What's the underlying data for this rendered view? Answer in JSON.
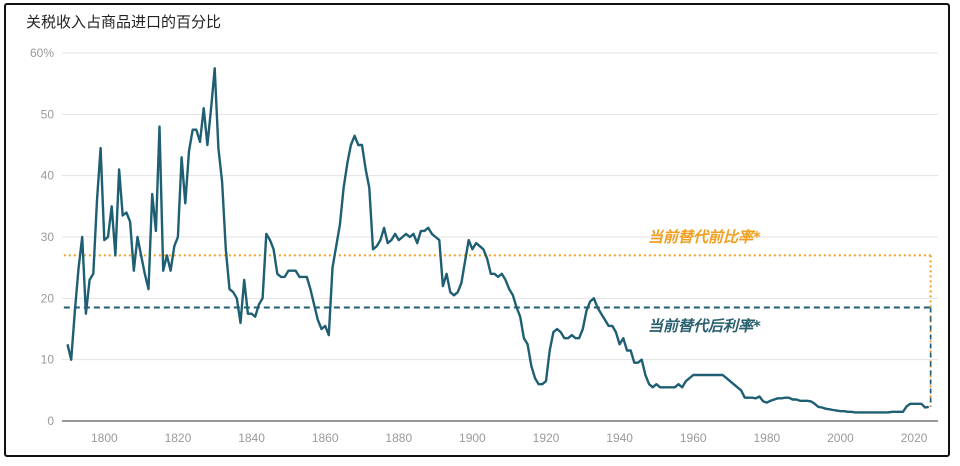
{
  "chart_data": {
    "type": "line",
    "title": "关税收入占商品进口的百分比",
    "xlabel": "",
    "ylabel": "",
    "xlim": [
      1789,
      2025
    ],
    "ylim": [
      0,
      60
    ],
    "grid": true,
    "legend": "none",
    "x_ticks": [
      1800,
      1820,
      1840,
      1860,
      1880,
      1900,
      1920,
      1940,
      1960,
      1980,
      2000,
      2020
    ],
    "y_ticks": [
      0,
      10,
      20,
      30,
      40,
      50,
      60
    ],
    "y_tick_labels": [
      "0",
      "10",
      "20",
      "30",
      "40",
      "50",
      "60%"
    ],
    "colors": {
      "series": "#1f5f73",
      "pre_rate": "#f0a020",
      "post_rate": "#1f5f73",
      "annotation_post": "#2a5f70"
    },
    "series": [
      {
        "points": [
          [
            1790,
            12.5
          ],
          [
            1791,
            10
          ],
          [
            1792,
            18
          ],
          [
            1793,
            25
          ],
          [
            1794,
            30
          ],
          [
            1795,
            17.5
          ],
          [
            1796,
            23
          ],
          [
            1797,
            24
          ],
          [
            1798,
            36
          ],
          [
            1799,
            44.5
          ],
          [
            1800,
            29.5
          ],
          [
            1801,
            30
          ],
          [
            1802,
            35
          ],
          [
            1803,
            27
          ],
          [
            1804,
            41
          ],
          [
            1805,
            33.5
          ],
          [
            1806,
            34
          ],
          [
            1807,
            32.5
          ],
          [
            1808,
            24.5
          ],
          [
            1809,
            30
          ],
          [
            1810,
            27
          ],
          [
            1811,
            24
          ],
          [
            1812,
            21.5
          ],
          [
            1813,
            37
          ],
          [
            1814,
            31
          ],
          [
            1815,
            48
          ],
          [
            1816,
            24.5
          ],
          [
            1817,
            27
          ],
          [
            1818,
            24.5
          ],
          [
            1819,
            28.5
          ],
          [
            1820,
            30
          ],
          [
            1821,
            43
          ],
          [
            1822,
            35.5
          ],
          [
            1823,
            44
          ],
          [
            1824,
            47.5
          ],
          [
            1825,
            47.5
          ],
          [
            1826,
            45.5
          ],
          [
            1827,
            51
          ],
          [
            1828,
            45
          ],
          [
            1829,
            51
          ],
          [
            1830,
            57.5
          ],
          [
            1831,
            44.5
          ],
          [
            1832,
            39
          ],
          [
            1833,
            28
          ],
          [
            1834,
            21.5
          ],
          [
            1835,
            21
          ],
          [
            1836,
            20
          ],
          [
            1837,
            16
          ],
          [
            1838,
            23
          ],
          [
            1839,
            17.5
          ],
          [
            1840,
            17.5
          ],
          [
            1841,
            17
          ],
          [
            1842,
            19
          ],
          [
            1843,
            20
          ],
          [
            1844,
            30.5
          ],
          [
            1845,
            29.5
          ],
          [
            1846,
            28
          ],
          [
            1847,
            24
          ],
          [
            1848,
            23.5
          ],
          [
            1849,
            23.5
          ],
          [
            1850,
            24.5
          ],
          [
            1851,
            24.5
          ],
          [
            1852,
            24.5
          ],
          [
            1853,
            23.5
          ],
          [
            1854,
            23.5
          ],
          [
            1855,
            23.5
          ],
          [
            1856,
            21.5
          ],
          [
            1857,
            19
          ],
          [
            1858,
            16.5
          ],
          [
            1859,
            15
          ],
          [
            1860,
            15.5
          ],
          [
            1861,
            14
          ],
          [
            1862,
            25
          ],
          [
            1863,
            28.5
          ],
          [
            1864,
            32
          ],
          [
            1865,
            38
          ],
          [
            1866,
            42
          ],
          [
            1867,
            45
          ],
          [
            1868,
            46.5
          ],
          [
            1869,
            45
          ],
          [
            1870,
            45
          ],
          [
            1871,
            41
          ],
          [
            1872,
            38
          ],
          [
            1873,
            28
          ],
          [
            1874,
            28.5
          ],
          [
            1875,
            29.5
          ],
          [
            1876,
            31.5
          ],
          [
            1877,
            29
          ],
          [
            1878,
            29.5
          ],
          [
            1879,
            30.5
          ],
          [
            1880,
            29.5
          ],
          [
            1881,
            30
          ],
          [
            1882,
            30.5
          ],
          [
            1883,
            30
          ],
          [
            1884,
            30.5
          ],
          [
            1885,
            29
          ],
          [
            1886,
            31
          ],
          [
            1887,
            31
          ],
          [
            1888,
            31.5
          ],
          [
            1889,
            30.5
          ],
          [
            1890,
            30
          ],
          [
            1891,
            29.5
          ],
          [
            1892,
            22
          ],
          [
            1893,
            24
          ],
          [
            1894,
            21
          ],
          [
            1895,
            20.5
          ],
          [
            1896,
            21
          ],
          [
            1897,
            22.5
          ],
          [
            1898,
            26
          ],
          [
            1899,
            29.5
          ],
          [
            1900,
            28
          ],
          [
            1901,
            29
          ],
          [
            1902,
            28.5
          ],
          [
            1903,
            28
          ],
          [
            1904,
            26.5
          ],
          [
            1905,
            24
          ],
          [
            1906,
            24
          ],
          [
            1907,
            23.5
          ],
          [
            1908,
            24
          ],
          [
            1909,
            23
          ],
          [
            1910,
            21.5
          ],
          [
            1911,
            20.5
          ],
          [
            1912,
            18.5
          ],
          [
            1913,
            17
          ],
          [
            1914,
            13.5
          ],
          [
            1915,
            12.5
          ],
          [
            1916,
            9
          ],
          [
            1917,
            7
          ],
          [
            1918,
            6
          ],
          [
            1919,
            6
          ],
          [
            1920,
            6.5
          ],
          [
            1921,
            11.5
          ],
          [
            1922,
            14.5
          ],
          [
            1923,
            15
          ],
          [
            1924,
            14.5
          ],
          [
            1925,
            13.5
          ],
          [
            1926,
            13.5
          ],
          [
            1927,
            14
          ],
          [
            1928,
            13.5
          ],
          [
            1929,
            13.5
          ],
          [
            1930,
            15
          ],
          [
            1931,
            18
          ],
          [
            1932,
            19.5
          ],
          [
            1933,
            20
          ],
          [
            1934,
            18.5
          ],
          [
            1935,
            17.5
          ],
          [
            1936,
            16.5
          ],
          [
            1937,
            15.5
          ],
          [
            1938,
            15.5
          ],
          [
            1939,
            14.5
          ],
          [
            1940,
            12.5
          ],
          [
            1941,
            13.5
          ],
          [
            1942,
            11.5
          ],
          [
            1943,
            11.5
          ],
          [
            1944,
            9.5
          ],
          [
            1945,
            9.5
          ],
          [
            1946,
            10
          ],
          [
            1947,
            7.5
          ],
          [
            1948,
            6
          ],
          [
            1949,
            5.5
          ],
          [
            1950,
            6
          ],
          [
            1951,
            5.5
          ],
          [
            1952,
            5.5
          ],
          [
            1953,
            5.5
          ],
          [
            1954,
            5.5
          ],
          [
            1955,
            5.5
          ],
          [
            1956,
            6
          ],
          [
            1957,
            5.5
          ],
          [
            1958,
            6.5
          ],
          [
            1959,
            7
          ],
          [
            1960,
            7.5
          ],
          [
            1961,
            7.5
          ],
          [
            1962,
            7.5
          ],
          [
            1963,
            7.5
          ],
          [
            1964,
            7.5
          ],
          [
            1965,
            7.5
          ],
          [
            1966,
            7.5
          ],
          [
            1967,
            7.5
          ],
          [
            1968,
            7.5
          ],
          [
            1969,
            7
          ],
          [
            1970,
            6.5
          ],
          [
            1971,
            6
          ],
          [
            1972,
            5.5
          ],
          [
            1973,
            5
          ],
          [
            1974,
            3.8
          ],
          [
            1975,
            3.8
          ],
          [
            1976,
            3.8
          ],
          [
            1977,
            3.7
          ],
          [
            1978,
            4
          ],
          [
            1979,
            3.2
          ],
          [
            1980,
            3
          ],
          [
            1981,
            3.3
          ],
          [
            1982,
            3.5
          ],
          [
            1983,
            3.7
          ],
          [
            1984,
            3.7
          ],
          [
            1985,
            3.8
          ],
          [
            1986,
            3.8
          ],
          [
            1987,
            3.5
          ],
          [
            1988,
            3.5
          ],
          [
            1989,
            3.3
          ],
          [
            1990,
            3.3
          ],
          [
            1991,
            3.3
          ],
          [
            1992,
            3.2
          ],
          [
            1993,
            2.8
          ],
          [
            1994,
            2.3
          ],
          [
            1995,
            2.2
          ],
          [
            1996,
            2
          ],
          [
            1997,
            1.9
          ],
          [
            1998,
            1.8
          ],
          [
            1999,
            1.7
          ],
          [
            2000,
            1.6
          ],
          [
            2001,
            1.6
          ],
          [
            2002,
            1.5
          ],
          [
            2003,
            1.5
          ],
          [
            2004,
            1.4
          ],
          [
            2005,
            1.4
          ],
          [
            2006,
            1.4
          ],
          [
            2007,
            1.4
          ],
          [
            2008,
            1.4
          ],
          [
            2009,
            1.4
          ],
          [
            2010,
            1.4
          ],
          [
            2011,
            1.4
          ],
          [
            2012,
            1.4
          ],
          [
            2013,
            1.4
          ],
          [
            2014,
            1.5
          ],
          [
            2015,
            1.5
          ],
          [
            2016,
            1.5
          ],
          [
            2017,
            1.5
          ],
          [
            2018,
            2.4
          ],
          [
            2019,
            2.8
          ],
          [
            2020,
            2.8
          ],
          [
            2021,
            2.8
          ],
          [
            2022,
            2.8
          ],
          [
            2023,
            2.2
          ],
          [
            2024,
            2.3
          ]
        ]
      }
    ],
    "reference_lines": [
      {
        "label": "当前替代前比率*",
        "value": 27,
        "from": 1789,
        "to": 2025,
        "style": "dotted",
        "color": "#f0a020"
      },
      {
        "label": "当前替代后利率*",
        "value": 18.5,
        "from": 1789,
        "to": 2025,
        "style": "dashed",
        "color": "#1f5f73"
      }
    ],
    "annotations": {
      "pre_label": "当前替代前比率*",
      "post_label": "当前替代后利率*"
    }
  }
}
